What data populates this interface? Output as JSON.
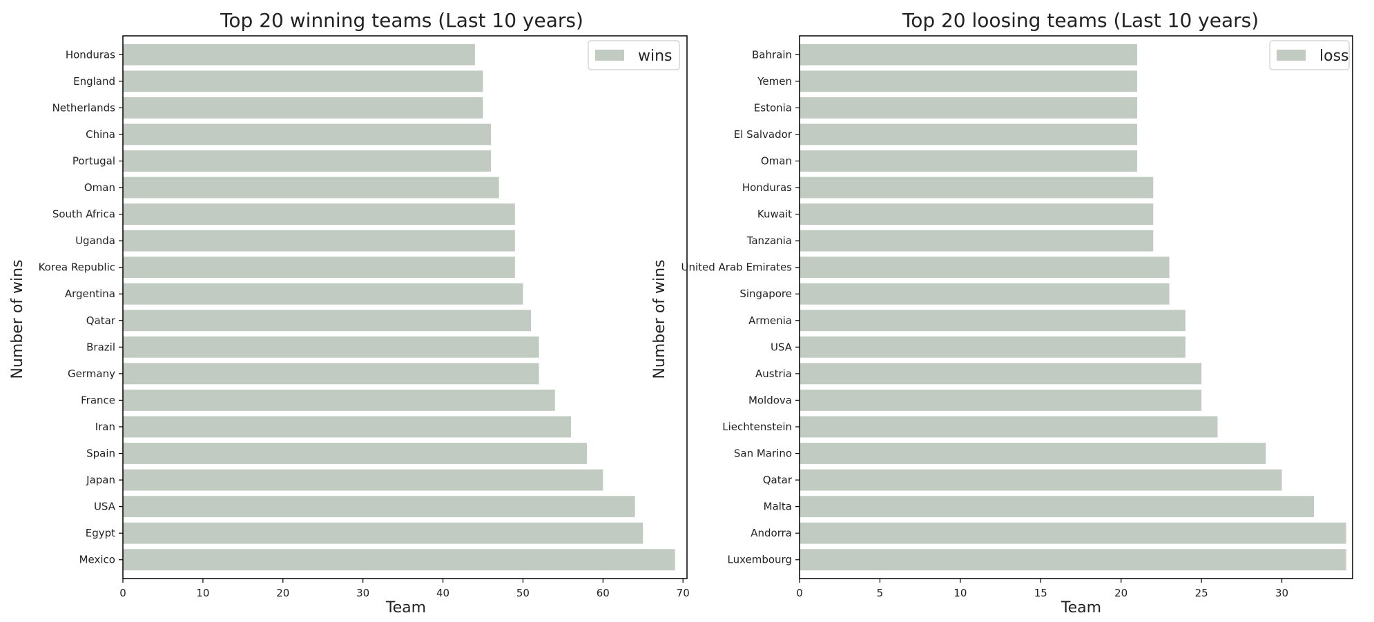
{
  "chart_data": [
    {
      "type": "bar",
      "orientation": "horizontal",
      "title": "Top 20 winning teams (Last 10 years)",
      "xlabel": "Team",
      "ylabel": "Number of wins",
      "xlim": [
        0,
        70.5
      ],
      "xticks": [
        0,
        10,
        20,
        30,
        40,
        50,
        60,
        70
      ],
      "legend": {
        "label": "wins",
        "position": "top-right"
      },
      "bar_color": "#c2cbc2",
      "grid": false,
      "categories": [
        "Honduras",
        "England",
        "Netherlands",
        "China",
        "Portugal",
        "Oman",
        "South Africa",
        "Uganda",
        "Korea Republic",
        "Argentina",
        "Qatar",
        "Brazil",
        "Germany",
        "France",
        "Iran",
        "Spain",
        "Japan",
        "USA",
        "Egypt",
        "Mexico"
      ],
      "values": [
        44,
        45,
        45,
        46,
        46,
        47,
        49,
        49,
        49,
        50,
        51,
        52,
        52,
        54,
        56,
        58,
        60,
        64,
        65,
        69
      ]
    },
    {
      "type": "bar",
      "orientation": "horizontal",
      "title": "Top 20 loosing teams (Last 10 years)",
      "xlabel": "Team",
      "ylabel": "Number of wins",
      "xlim": [
        0,
        34.4
      ],
      "xticks": [
        0,
        5,
        10,
        15,
        20,
        25,
        30
      ],
      "legend": {
        "label": "loss",
        "position": "top-right"
      },
      "bar_color": "#c2cbc2",
      "grid": false,
      "categories": [
        "Bahrain",
        "Yemen",
        "Estonia",
        "El Salvador",
        "Oman",
        "Honduras",
        "Kuwait",
        "Tanzania",
        "United Arab Emirates",
        "Singapore",
        "Armenia",
        "USA",
        "Austria",
        "Moldova",
        "Liechtenstein",
        "San Marino",
        "Qatar",
        "Malta",
        "Andorra",
        "Luxembourg"
      ],
      "values": [
        21,
        21,
        21,
        21,
        21,
        22,
        22,
        22,
        23,
        23,
        24,
        24,
        25,
        25,
        26,
        29,
        30,
        32,
        34,
        34
      ]
    }
  ]
}
